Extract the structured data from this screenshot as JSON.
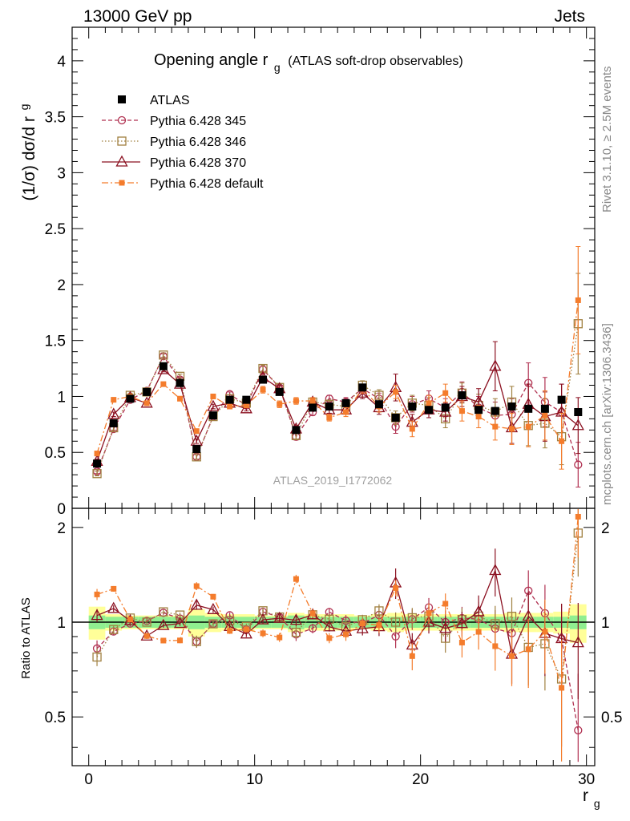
{
  "header": {
    "left": "13000 GeV pp",
    "right": "Jets"
  },
  "side": {
    "rivet": "Rivet 3.1.10, ≥ 2.5M events",
    "mcplots": "mcplots.cern.ch [arXiv:1306.3436]"
  },
  "watermark": "ATLAS_2019_I1772062",
  "colors": {
    "atlas": "#000000",
    "p345": "#b03050",
    "p346": "#a08040",
    "p370": "#8b1020",
    "pdef": "#f47c2c",
    "band_inner": "#90ee90",
    "band_outer": "#ffff99"
  },
  "chart_data": {
    "type": "line",
    "title": "Opening angle r",
    "title_sub": "g",
    "title_note": "(ATLAS soft-drop observables)",
    "ylabel": "(1/σ) dσ/d r",
    "ylabel_sub": "g",
    "xlabel": "r",
    "xlabel_sub": "g",
    "ratio_ylabel": "Ratio to ATLAS",
    "xlim": [
      -1,
      30.5
    ],
    "ylim": [
      0,
      4.3
    ],
    "ratio_ylim": [
      0.35,
      2.3
    ],
    "x_ticks": [
      0,
      10,
      20,
      30
    ],
    "y_ticks": [
      0,
      0.5,
      1,
      1.5,
      2,
      2.5,
      3,
      3.5,
      4
    ],
    "ratio_ticks": [
      0.5,
      1,
      2
    ],
    "legend_position": "top-left",
    "x": [
      0.5,
      1.5,
      2.5,
      3.5,
      4.5,
      5.5,
      6.5,
      7.5,
      8.5,
      9.5,
      10.5,
      11.5,
      12.5,
      13.5,
      14.5,
      15.5,
      16.5,
      17.5,
      18.5,
      19.5,
      20.5,
      21.5,
      22.5,
      23.5,
      24.5,
      25.5,
      26.5,
      27.5,
      28.5,
      29.5
    ],
    "series": [
      {
        "name": "ATLAS",
        "key": "atlas",
        "marker": "square-filled",
        "values": [
          0.4,
          0.76,
          0.98,
          1.04,
          1.27,
          1.12,
          0.53,
          0.83,
          0.97,
          0.97,
          1.15,
          1.04,
          0.7,
          0.9,
          0.91,
          0.94,
          1.08,
          0.93,
          0.81,
          0.91,
          0.88,
          0.9,
          1.01,
          0.88,
          0.87,
          0.91,
          0.89,
          0.89,
          0.97,
          0.86
        ]
      },
      {
        "name": "Pythia 6.428 345",
        "key": "p345",
        "marker": "circle-open",
        "dash": "5,3",
        "values": [
          0.33,
          0.71,
          0.97,
          1.05,
          1.36,
          1.15,
          0.46,
          0.82,
          1.02,
          0.92,
          1.24,
          1.08,
          0.64,
          0.86,
          0.98,
          0.95,
          1.07,
          0.98,
          0.73,
          0.93,
          0.98,
          0.9,
          1.04,
          0.9,
          0.83,
          0.84,
          1.12,
          0.95,
          0.86,
          0.39
        ]
      },
      {
        "name": "Pythia 6.428 346",
        "key": "p346",
        "marker": "square-open",
        "dash": "1.5,2.5",
        "values": [
          0.31,
          0.72,
          1.01,
          1.04,
          1.37,
          1.18,
          0.46,
          0.82,
          0.98,
          0.94,
          1.25,
          1.08,
          0.65,
          0.95,
          0.93,
          0.91,
          1.1,
          1.01,
          0.81,
          0.94,
          0.92,
          0.8,
          1.03,
          0.92,
          0.86,
          0.95,
          0.74,
          0.76,
          0.64,
          1.65
        ]
      },
      {
        "name": "Pythia 6.428 370",
        "key": "p370",
        "marker": "triangle-open",
        "dash": "",
        "values": [
          0.42,
          0.84,
          0.99,
          0.94,
          1.24,
          1.11,
          0.6,
          0.91,
          0.94,
          0.89,
          1.17,
          1.07,
          0.71,
          0.95,
          0.88,
          0.88,
          1.03,
          0.9,
          1.08,
          0.77,
          0.88,
          0.86,
          1.0,
          0.95,
          1.27,
          0.72,
          0.93,
          0.82,
          0.86,
          0.74
        ]
      },
      {
        "name": "Pythia 6.428 default",
        "key": "pdef",
        "marker": "square-small",
        "dash": "8,3,2,3",
        "values": [
          0.49,
          0.97,
          1.0,
          0.94,
          1.11,
          0.98,
          0.69,
          1.0,
          0.91,
          0.92,
          1.06,
          0.93,
          0.96,
          0.96,
          0.81,
          0.86,
          1.07,
          0.91,
          1.04,
          0.71,
          0.94,
          1.03,
          0.87,
          0.82,
          0.73,
          0.71,
          0.73,
          0.83,
          0.6,
          1.86
        ]
      }
    ],
    "errors": {
      "p345": [
        0.02,
        0.02,
        0.02,
        0.02,
        0.02,
        0.02,
        0.02,
        0.02,
        0.02,
        0.02,
        0.03,
        0.03,
        0.03,
        0.03,
        0.03,
        0.04,
        0.04,
        0.05,
        0.06,
        0.07,
        0.07,
        0.08,
        0.09,
        0.1,
        0.12,
        0.14,
        0.18,
        0.22,
        0.25,
        0.2
      ],
      "p346": [
        0.02,
        0.02,
        0.02,
        0.02,
        0.02,
        0.02,
        0.02,
        0.02,
        0.02,
        0.02,
        0.03,
        0.03,
        0.03,
        0.03,
        0.03,
        0.04,
        0.04,
        0.05,
        0.06,
        0.07,
        0.07,
        0.08,
        0.09,
        0.1,
        0.12,
        0.14,
        0.18,
        0.22,
        0.25,
        0.45
      ],
      "p370": [
        0.02,
        0.02,
        0.02,
        0.02,
        0.02,
        0.02,
        0.02,
        0.02,
        0.02,
        0.02,
        0.03,
        0.03,
        0.03,
        0.03,
        0.03,
        0.04,
        0.05,
        0.06,
        0.12,
        0.07,
        0.07,
        0.08,
        0.09,
        0.12,
        0.22,
        0.14,
        0.18,
        0.22,
        0.25,
        0.25
      ],
      "pdef": [
        0.02,
        0.02,
        0.02,
        0.02,
        0.02,
        0.02,
        0.02,
        0.02,
        0.02,
        0.02,
        0.03,
        0.03,
        0.03,
        0.03,
        0.03,
        0.04,
        0.04,
        0.05,
        0.06,
        0.07,
        0.07,
        0.08,
        0.09,
        0.1,
        0.12,
        0.14,
        0.18,
        0.22,
        0.25,
        0.48
      ]
    },
    "band_inner_ratio": [
      0.05,
      0.04,
      0.04,
      0.04,
      0.04,
      0.04,
      0.05,
      0.04,
      0.04,
      0.04,
      0.04,
      0.04,
      0.05,
      0.04,
      0.04,
      0.04,
      0.04,
      0.04,
      0.04,
      0.04,
      0.04,
      0.04,
      0.04,
      0.04,
      0.04,
      0.04,
      0.04,
      0.04,
      0.04,
      0.05
    ],
    "band_outer_ratio": [
      0.12,
      0.06,
      0.05,
      0.05,
      0.05,
      0.05,
      0.1,
      0.07,
      0.06,
      0.06,
      0.05,
      0.05,
      0.07,
      0.06,
      0.06,
      0.06,
      0.05,
      0.06,
      0.07,
      0.06,
      0.06,
      0.06,
      0.06,
      0.06,
      0.06,
      0.07,
      0.07,
      0.07,
      0.08,
      0.14
    ]
  }
}
